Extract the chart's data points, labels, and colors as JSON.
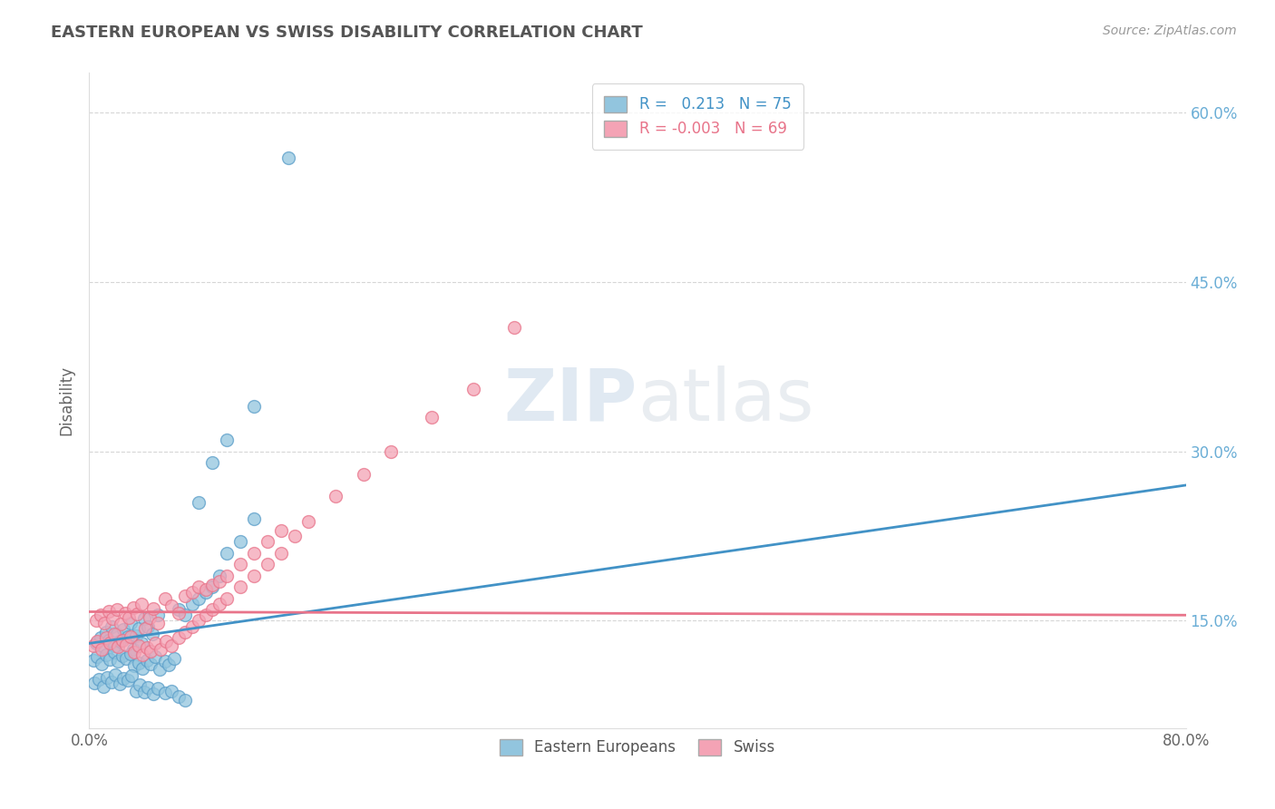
{
  "title": "EASTERN EUROPEAN VS SWISS DISABILITY CORRELATION CHART",
  "source": "Source: ZipAtlas.com",
  "ylabel": "Disability",
  "y_ticks": [
    0.15,
    0.3,
    0.45,
    0.6
  ],
  "y_tick_labels": [
    "15.0%",
    "30.0%",
    "45.0%",
    "60.0%"
  ],
  "x_min": 0.0,
  "x_max": 0.8,
  "y_min": 0.055,
  "y_max": 0.635,
  "blue_R": 0.213,
  "blue_N": 75,
  "pink_R": -0.003,
  "pink_N": 69,
  "blue_color": "#92c5de",
  "pink_color": "#f4a3b5",
  "blue_edge_color": "#5b9ec9",
  "pink_edge_color": "#e8748a",
  "blue_line_color": "#4292c6",
  "pink_line_color": "#e8748a",
  "legend_label_blue": "Eastern Europeans",
  "legend_label_pink": "Swiss",
  "blue_line_x": [
    0.0,
    0.8
  ],
  "blue_line_y": [
    0.13,
    0.27
  ],
  "pink_line_x": [
    0.0,
    0.8
  ],
  "pink_line_y": [
    0.158,
    0.155
  ],
  "background_color": "#ffffff",
  "grid_color": "#cccccc",
  "title_color": "#555555",
  "right_tick_color": "#6baed6",
  "blue_scatter_x": [
    0.005,
    0.008,
    0.01,
    0.012,
    0.014,
    0.016,
    0.018,
    0.02,
    0.022,
    0.025,
    0.028,
    0.03,
    0.032,
    0.034,
    0.036,
    0.038,
    0.04,
    0.043,
    0.046,
    0.05,
    0.003,
    0.006,
    0.009,
    0.012,
    0.015,
    0.018,
    0.021,
    0.024,
    0.027,
    0.03,
    0.033,
    0.036,
    0.039,
    0.042,
    0.045,
    0.048,
    0.051,
    0.055,
    0.058,
    0.062,
    0.065,
    0.07,
    0.075,
    0.08,
    0.085,
    0.09,
    0.095,
    0.1,
    0.11,
    0.12,
    0.004,
    0.007,
    0.01,
    0.013,
    0.016,
    0.019,
    0.022,
    0.025,
    0.028,
    0.031,
    0.034,
    0.037,
    0.04,
    0.043,
    0.047,
    0.05,
    0.055,
    0.06,
    0.065,
    0.07,
    0.08,
    0.09,
    0.1,
    0.12,
    0.145
  ],
  "blue_scatter_y": [
    0.13,
    0.135,
    0.127,
    0.14,
    0.133,
    0.145,
    0.128,
    0.138,
    0.132,
    0.142,
    0.136,
    0.148,
    0.125,
    0.137,
    0.143,
    0.13,
    0.152,
    0.145,
    0.138,
    0.155,
    0.115,
    0.118,
    0.112,
    0.12,
    0.116,
    0.122,
    0.114,
    0.119,
    0.117,
    0.121,
    0.11,
    0.113,
    0.108,
    0.115,
    0.112,
    0.118,
    0.107,
    0.114,
    0.111,
    0.117,
    0.16,
    0.155,
    0.165,
    0.17,
    0.175,
    0.18,
    0.19,
    0.21,
    0.22,
    0.24,
    0.095,
    0.098,
    0.092,
    0.1,
    0.096,
    0.102,
    0.094,
    0.099,
    0.097,
    0.101,
    0.088,
    0.093,
    0.087,
    0.091,
    0.085,
    0.09,
    0.086,
    0.088,
    0.083,
    0.08,
    0.255,
    0.29,
    0.31,
    0.34,
    0.56
  ],
  "pink_scatter_x": [
    0.005,
    0.008,
    0.011,
    0.014,
    0.017,
    0.02,
    0.023,
    0.026,
    0.029,
    0.032,
    0.035,
    0.038,
    0.041,
    0.044,
    0.047,
    0.05,
    0.055,
    0.06,
    0.065,
    0.07,
    0.075,
    0.08,
    0.085,
    0.09,
    0.095,
    0.1,
    0.11,
    0.12,
    0.13,
    0.14,
    0.003,
    0.006,
    0.009,
    0.012,
    0.015,
    0.018,
    0.021,
    0.024,
    0.027,
    0.03,
    0.033,
    0.036,
    0.039,
    0.042,
    0.045,
    0.048,
    0.052,
    0.056,
    0.06,
    0.065,
    0.07,
    0.075,
    0.08,
    0.085,
    0.09,
    0.095,
    0.1,
    0.11,
    0.12,
    0.13,
    0.14,
    0.15,
    0.16,
    0.18,
    0.2,
    0.22,
    0.25,
    0.28,
    0.31
  ],
  "pink_scatter_y": [
    0.15,
    0.155,
    0.148,
    0.158,
    0.152,
    0.16,
    0.147,
    0.157,
    0.153,
    0.162,
    0.156,
    0.165,
    0.143,
    0.153,
    0.161,
    0.148,
    0.17,
    0.163,
    0.157,
    0.172,
    0.175,
    0.18,
    0.178,
    0.182,
    0.185,
    0.19,
    0.2,
    0.21,
    0.22,
    0.23,
    0.128,
    0.132,
    0.125,
    0.135,
    0.13,
    0.138,
    0.127,
    0.133,
    0.129,
    0.136,
    0.122,
    0.128,
    0.12,
    0.126,
    0.123,
    0.13,
    0.125,
    0.132,
    0.128,
    0.135,
    0.14,
    0.145,
    0.15,
    0.155,
    0.16,
    0.165,
    0.17,
    0.18,
    0.19,
    0.2,
    0.21,
    0.225,
    0.238,
    0.26,
    0.28,
    0.3,
    0.33,
    0.355,
    0.41
  ]
}
